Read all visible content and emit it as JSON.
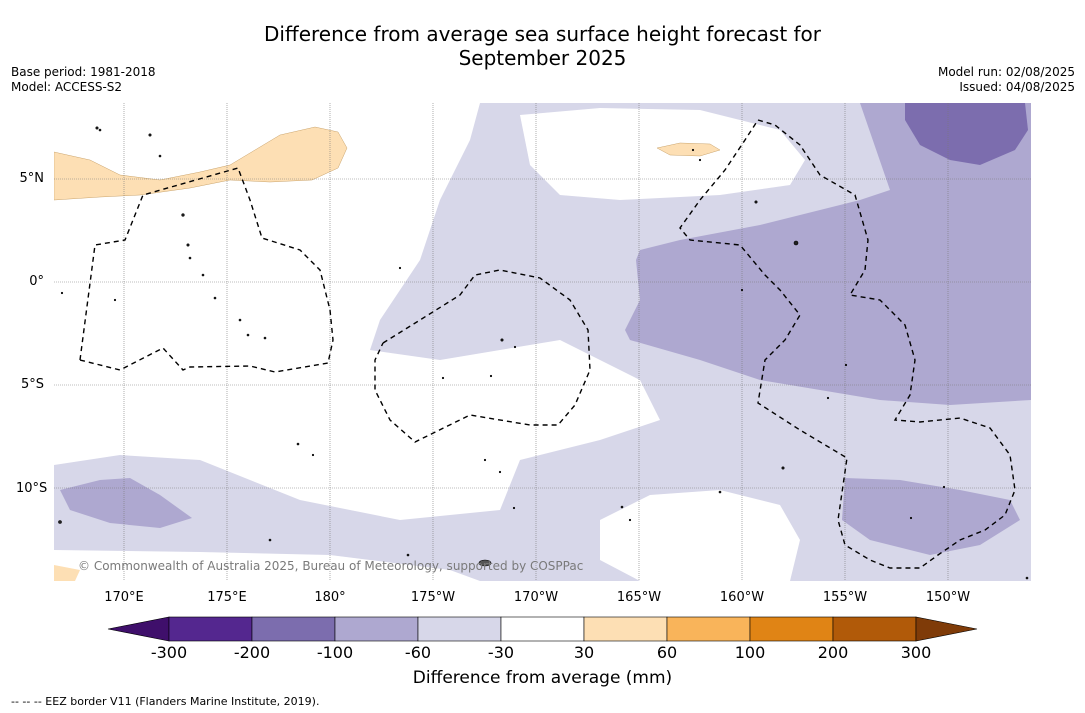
{
  "title_line1": "Difference from average sea surface height forecast for",
  "title_line2": "September 2025",
  "base_period": "Base period: 1981-2018",
  "model": "Model: ACCESS-S2",
  "model_run": "Model run: 02/08/2025",
  "issued": "Issued: 04/08/2025",
  "lat_labels": [
    "5°N",
    "0°",
    "5°S",
    "10°S"
  ],
  "lon_labels": [
    "170°E",
    "175°E",
    "180°",
    "175°W",
    "170°W",
    "165°W",
    "160°W",
    "155°W",
    "150°W"
  ],
  "colorbar": {
    "title": "Difference from average (mm)",
    "ticks": [
      "-300",
      "-200",
      "-100",
      "-60",
      "-30",
      "30",
      "60",
      "100",
      "200",
      "300"
    ],
    "colors": [
      "#3f0f6b",
      "#54278f",
      "#7c6dae",
      "#aea8d0",
      "#d7d7e9",
      "#ffffff",
      "#fddfb4",
      "#f9b45a",
      "#e08415",
      "#b15a09",
      "#7f3b08"
    ]
  },
  "copyright": "© Commonwealth of Australia 2025, Bureau of Meteorology, supported by COSPPac",
  "footnote": "-- -- -- EEZ border V11 (Flanders Marine Institute, 2019)."
}
